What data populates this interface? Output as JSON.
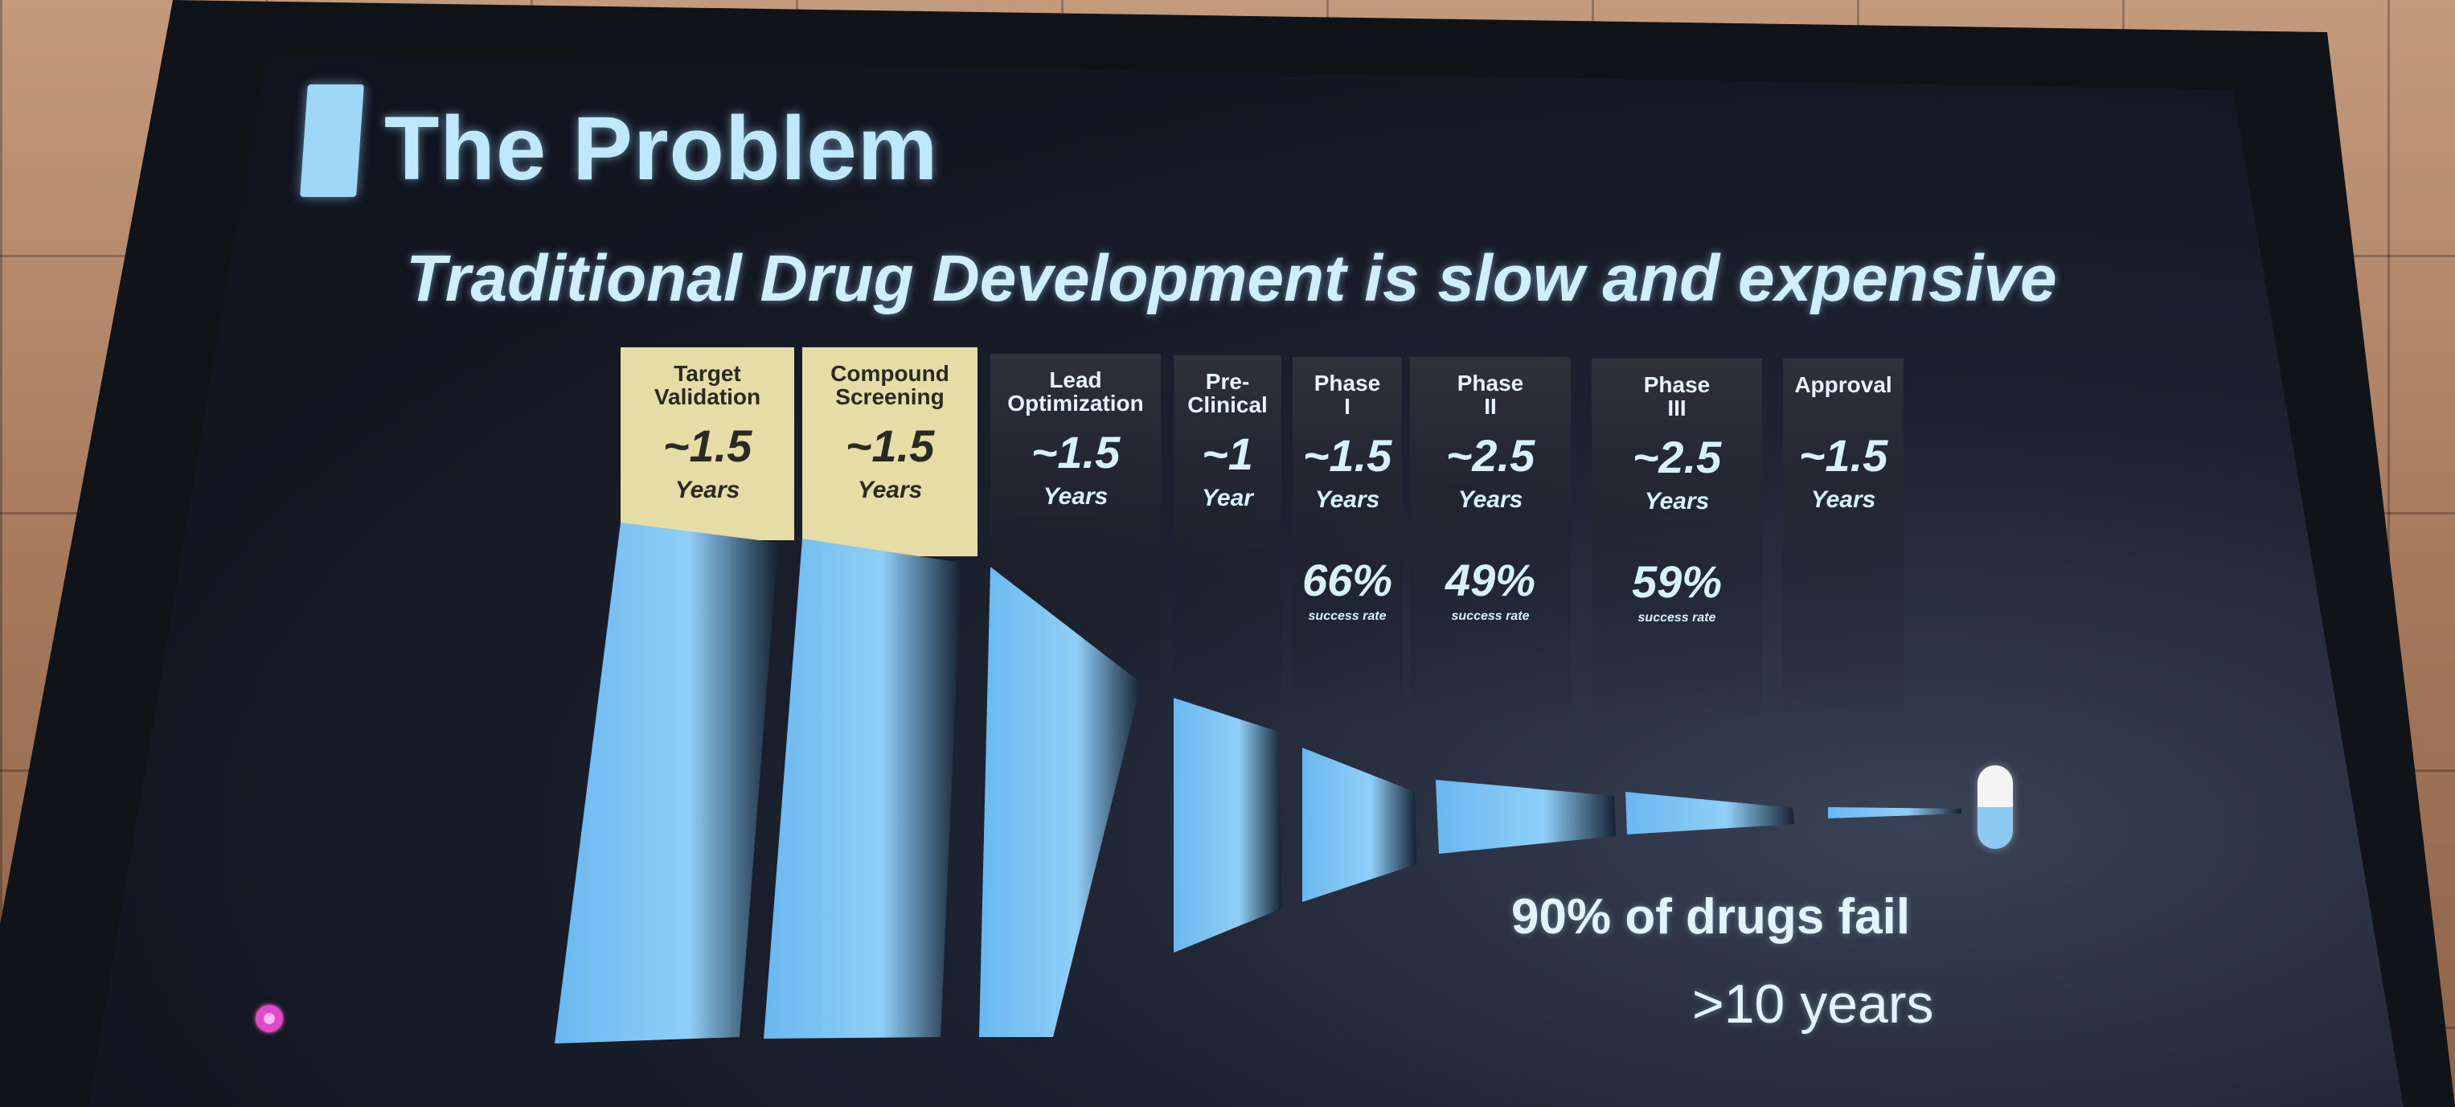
{
  "slide": {
    "title": "The Problem",
    "subtitle": "Traditional Drug Development is slow and expensive",
    "notes": {
      "failure": "90% of drugs fail",
      "duration": ">10 years"
    }
  },
  "stages": [
    {
      "name": "Target Validation",
      "name_lines": [
        "Target",
        "Validation"
      ],
      "duration": "~1.5",
      "unit": "Years",
      "rate": "",
      "rate_label": "",
      "highlight": true
    },
    {
      "name": "Compound Screening",
      "name_lines": [
        "Compound",
        "Screening"
      ],
      "duration": "~1.5",
      "unit": "Years",
      "rate": "",
      "rate_label": "",
      "highlight": true
    },
    {
      "name": "Lead Optimization",
      "name_lines": [
        "Lead",
        "Optimization"
      ],
      "duration": "~1.5",
      "unit": "Years",
      "rate": "",
      "rate_label": "",
      "highlight": false
    },
    {
      "name": "Pre-Clinical",
      "name_lines": [
        "Pre-",
        "Clinical"
      ],
      "duration": "~1",
      "unit": "Year",
      "rate": "",
      "rate_label": "",
      "highlight": false
    },
    {
      "name": "Phase I",
      "name_lines": [
        "Phase",
        "I"
      ],
      "duration": "~1.5",
      "unit": "Years",
      "rate": "66%",
      "rate_label": "success rate",
      "highlight": false
    },
    {
      "name": "Phase II",
      "name_lines": [
        "Phase",
        "II"
      ],
      "duration": "~2.5",
      "unit": "Years",
      "rate": "49%",
      "rate_label": "success rate",
      "highlight": false
    },
    {
      "name": "Phase III",
      "name_lines": [
        "Phase",
        "III"
      ],
      "duration": "~2.5",
      "unit": "Years",
      "rate": "59%",
      "rate_label": "success rate",
      "highlight": false
    },
    {
      "name": "Approval",
      "name_lines": [
        "Approval"
      ],
      "duration": "~1.5",
      "unit": "Years",
      "rate": "",
      "rate_label": "",
      "highlight": false
    }
  ],
  "colors": {
    "highlight_box": "#e5dca6",
    "dark_box": "#262a33",
    "funnel_blue": "#7fc4f3",
    "title_color": "#bfe8ff"
  },
  "icons": {
    "pill": "capsule-pill-icon",
    "indicator": "pink-indicator-dot"
  }
}
